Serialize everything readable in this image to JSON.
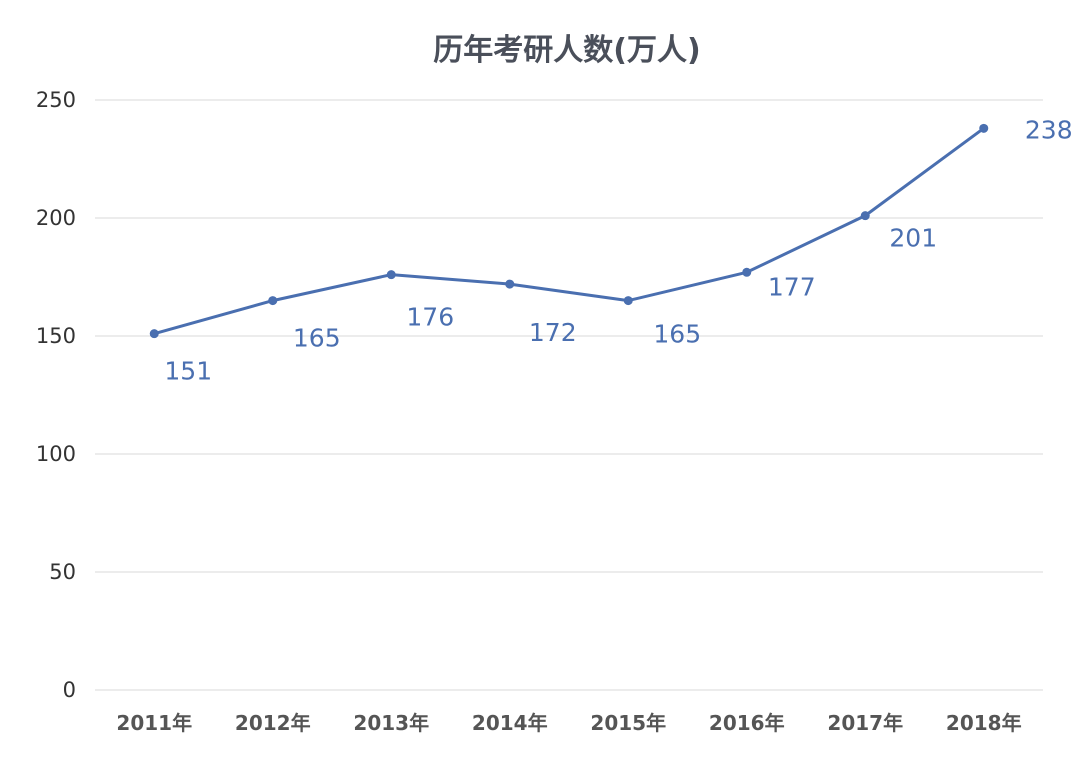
{
  "chart_data": {
    "type": "line",
    "title": "历年考研人数(万人)",
    "xlabel": "",
    "ylabel": "",
    "categories": [
      "2011年",
      "2012年",
      "2013年",
      "2014年",
      "2015年",
      "2016年",
      "2017年",
      "2018年"
    ],
    "series": [
      {
        "values": [
          151,
          165,
          176,
          172,
          165,
          177,
          201,
          238
        ],
        "color": "#4a6fb0"
      }
    ],
    "data_labels": [
      "151",
      "165",
      "176",
      "172",
      "165",
      "177",
      "201",
      "238"
    ],
    "ylim": [
      0,
      250
    ],
    "y_ticks": [
      0,
      50,
      100,
      150,
      200,
      250
    ],
    "y_tick_labels": [
      "0",
      "50",
      "100",
      "150",
      "200",
      "250"
    ],
    "grid": true,
    "legend": "none"
  }
}
